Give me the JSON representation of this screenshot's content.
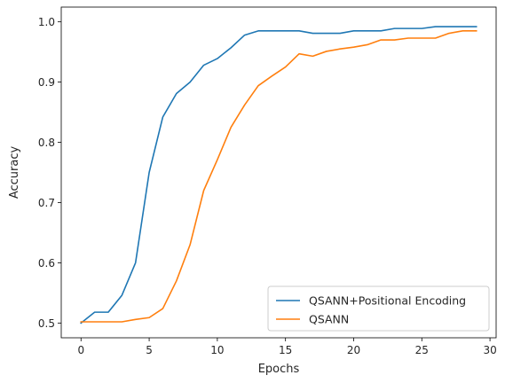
{
  "chart_data": {
    "type": "line",
    "title": "",
    "xlabel": "Epochs",
    "ylabel": "Accuracy",
    "xlim": [
      -1.45,
      30.45
    ],
    "ylim": [
      0.4755,
      1.0245
    ],
    "xticks": [
      0,
      5,
      10,
      15,
      20,
      25,
      30
    ],
    "yticks": [
      0.5,
      0.6,
      0.7,
      0.8,
      0.9,
      1.0
    ],
    "xtick_labels": [
      "0",
      "5",
      "10",
      "15",
      "20",
      "25",
      "30"
    ],
    "ytick_labels": [
      "0.5",
      "0.6",
      "0.7",
      "0.8",
      "0.9",
      "1.0"
    ],
    "grid": false,
    "legend_position": "lower-right",
    "x": [
      0,
      1,
      2,
      3,
      4,
      5,
      6,
      7,
      8,
      9,
      10,
      11,
      12,
      13,
      14,
      15,
      16,
      17,
      18,
      19,
      20,
      21,
      22,
      23,
      24,
      25,
      26,
      27,
      28,
      29
    ],
    "series": [
      {
        "name": "QSANN+Positional Encoding",
        "color": "#1f77b4",
        "values": [
          0.5,
          0.518,
          0.518,
          0.546,
          0.6,
          0.75,
          0.842,
          0.881,
          0.9,
          0.928,
          0.939,
          0.957,
          0.978,
          0.985,
          0.985,
          0.985,
          0.985,
          0.981,
          0.981,
          0.981,
          0.985,
          0.985,
          0.985,
          0.989,
          0.989,
          0.989,
          0.992,
          0.992,
          0.992,
          0.992
        ]
      },
      {
        "name": "QSANN",
        "color": "#ff7f0e",
        "values": [
          0.502,
          0.502,
          0.502,
          0.502,
          0.506,
          0.509,
          0.524,
          0.57,
          0.63,
          0.72,
          0.771,
          0.825,
          0.862,
          0.894,
          0.91,
          0.925,
          0.947,
          0.943,
          0.951,
          0.955,
          0.958,
          0.962,
          0.97,
          0.97,
          0.973,
          0.973,
          0.973,
          0.981,
          0.985,
          0.985
        ]
      }
    ]
  }
}
